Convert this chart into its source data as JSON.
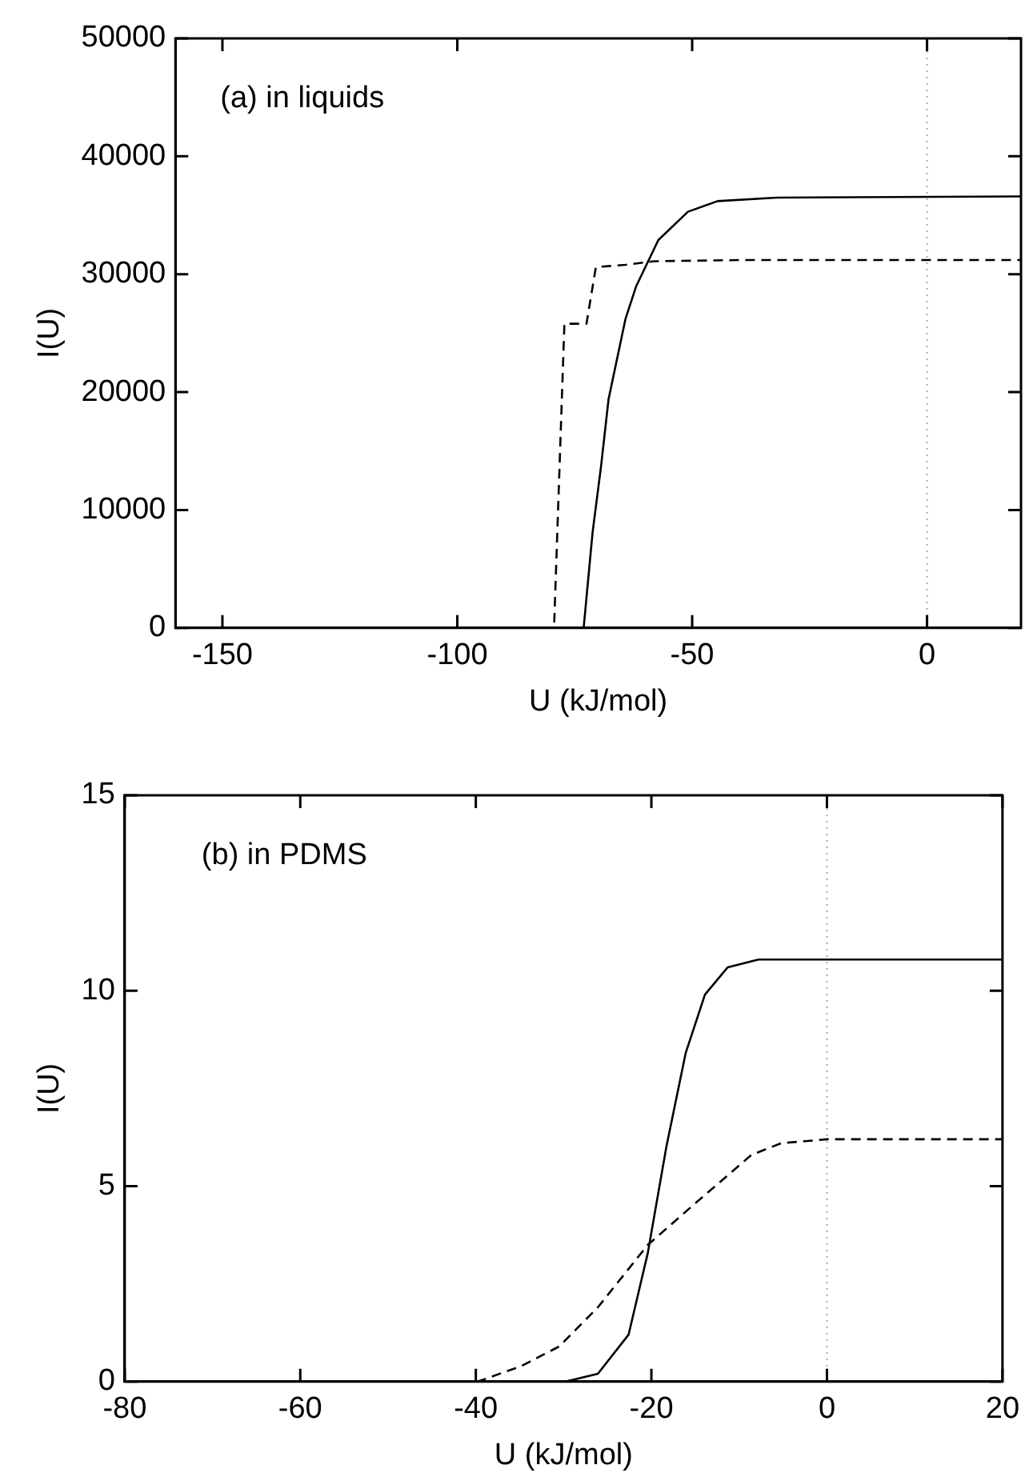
{
  "chart_data": [
    {
      "type": "line",
      "xlabel": "U (kJ/mol)",
      "ylabel": "I(U)",
      "annotations": [
        "(a) in liquids"
      ],
      "xlim": [
        -160,
        20
      ],
      "xticks": [
        -150,
        -100,
        -50,
        0
      ],
      "ylim": [
        0,
        50000
      ],
      "yticks": [
        0,
        10000,
        20000,
        30000,
        40000,
        50000
      ],
      "grid": false,
      "legend": false,
      "marker": "none",
      "ref_lines": [
        {
          "axis": "x",
          "value": 0,
          "color": "#aaaaaa",
          "line_style": "dotted"
        }
      ],
      "series": [
        {
          "color": "#000000",
          "line_style": "solid",
          "x": [
            -160,
            -73.1,
            -71.2,
            -69.4,
            -67.8,
            -64.2,
            -61.9,
            -57.2,
            -50.9,
            -44.6,
            -32,
            20
          ],
          "values": [
            0,
            0,
            8100,
            13700,
            19400,
            26200,
            29000,
            32900,
            35300,
            36200,
            36500,
            36600
          ]
        },
        {
          "color": "#000000",
          "line_style": "dashed",
          "x": [
            -160,
            -79.4,
            -77.2,
            -73.1,
            -72.5,
            -70.5,
            -64.2,
            -58,
            -40,
            20
          ],
          "values": [
            0,
            0,
            25800,
            25800,
            25800,
            30600,
            30800,
            31100,
            31200,
            31200
          ]
        }
      ]
    },
    {
      "type": "line",
      "xlabel": "U (kJ/mol)",
      "ylabel": "I(U)",
      "annotations": [
        "(b) in PDMS"
      ],
      "xlim": [
        -80,
        20
      ],
      "xticks": [
        -80,
        -60,
        -40,
        -20,
        0,
        20
      ],
      "ylim": [
        0,
        15
      ],
      "yticks": [
        0,
        5,
        10,
        15
      ],
      "grid": false,
      "legend": false,
      "marker": "none",
      "ref_lines": [
        {
          "axis": "x",
          "value": 0,
          "color": "#aaaaaa",
          "line_style": "dotted"
        }
      ],
      "series": [
        {
          "color": "#000000",
          "line_style": "solid",
          "x": [
            -80,
            -29.8,
            -26.1,
            -22.6,
            -20.4,
            -18.3,
            -16.1,
            -13.9,
            -11.3,
            -7.8,
            0,
            20
          ],
          "values": [
            0,
            0,
            0.2,
            1.2,
            3.3,
            6,
            8.4,
            9.9,
            10.6,
            10.8,
            10.8,
            10.8
          ]
        },
        {
          "color": "#000000",
          "line_style": "dashed",
          "x": [
            -80,
            -39.8,
            -34.8,
            -30.5,
            -26.1,
            -20.4,
            -14.8,
            -8.6,
            -5.2,
            0,
            20
          ],
          "values": [
            0,
            0,
            0.4,
            0.9,
            1.9,
            3.5,
            4.6,
            5.8,
            6.1,
            6.2,
            6.2
          ]
        }
      ]
    }
  ]
}
